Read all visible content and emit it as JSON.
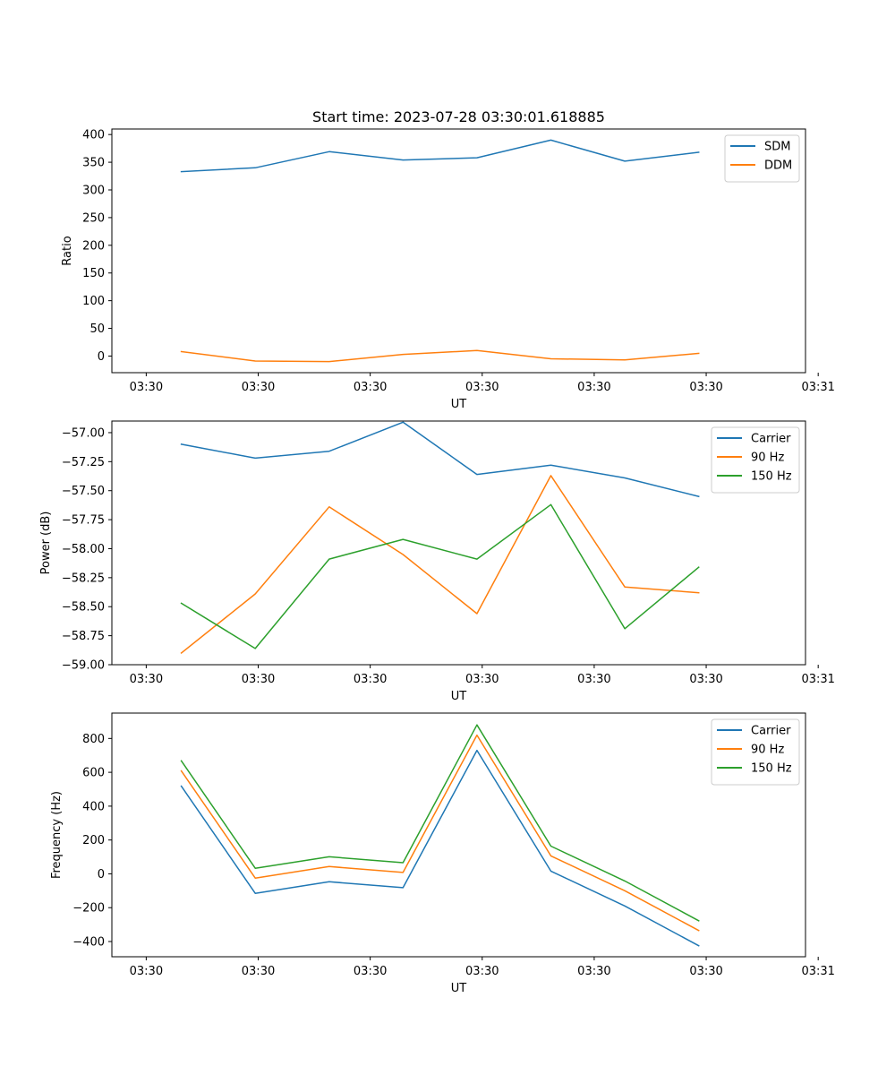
{
  "chart_data": [
    {
      "type": "line",
      "title": "Start time: 2023-07-28 03:30:01.618885",
      "xlabel": "UT",
      "ylabel": "Ratio",
      "xtick_labels": [
        "03:30",
        "03:30",
        "03:30",
        "03:30",
        "03:30",
        "03:30",
        "03:31"
      ],
      "xlim": [
        -0.46,
        8.83
      ],
      "x": [
        0.47,
        1.46,
        2.45,
        3.44,
        4.43,
        5.42,
        6.41,
        7.4
      ],
      "ylim": [
        -30,
        410
      ],
      "yticks": [
        0,
        50,
        100,
        150,
        200,
        250,
        300,
        350,
        400
      ],
      "legend_position": "top-right",
      "series": [
        {
          "name": "SDM",
          "color": "#1f77b4",
          "values": [
            333,
            340,
            369,
            354,
            358,
            390,
            352,
            368
          ]
        },
        {
          "name": "DDM",
          "color": "#ff7f0e",
          "values": [
            8,
            -9,
            -10,
            3,
            10,
            -5,
            -7,
            5
          ]
        }
      ]
    },
    {
      "type": "line",
      "title": "",
      "xlabel": "UT",
      "ylabel": "Power (dB)",
      "xtick_labels": [
        "03:30",
        "03:30",
        "03:30",
        "03:30",
        "03:30",
        "03:30",
        "03:31"
      ],
      "xlim": [
        -0.46,
        8.83
      ],
      "x": [
        0.47,
        1.46,
        2.45,
        3.44,
        4.43,
        5.42,
        6.41,
        7.4
      ],
      "ylim": [
        -59.0,
        -56.9
      ],
      "yticks": [
        -59.0,
        -58.75,
        -58.5,
        -58.25,
        -58.0,
        -57.75,
        -57.5,
        -57.25,
        -57.0
      ],
      "ytick_labels": [
        "−59.00",
        "−58.75",
        "−58.50",
        "−58.25",
        "−58.00",
        "−57.75",
        "−57.50",
        "−57.25",
        "−57.00"
      ],
      "legend_position": "top-right",
      "series": [
        {
          "name": "Carrier",
          "color": "#1f77b4",
          "values": [
            -57.1,
            -57.22,
            -57.16,
            -56.91,
            -57.36,
            -57.28,
            -57.39,
            -57.55
          ]
        },
        {
          "name": "90 Hz",
          "color": "#ff7f0e",
          "values": [
            -58.9,
            -58.39,
            -57.64,
            -58.05,
            -58.56,
            -57.37,
            -58.33,
            -58.38
          ]
        },
        {
          "name": "150 Hz",
          "color": "#2ca02c",
          "values": [
            -58.47,
            -58.86,
            -58.09,
            -57.92,
            -58.09,
            -57.62,
            -58.69,
            -58.16
          ]
        }
      ]
    },
    {
      "type": "line",
      "title": "",
      "xlabel": "UT",
      "ylabel": "Frequency (Hz)",
      "xtick_labels": [
        "03:30",
        "03:30",
        "03:30",
        "03:30",
        "03:30",
        "03:30",
        "03:31"
      ],
      "xlim": [
        -0.46,
        8.83
      ],
      "x": [
        0.47,
        1.46,
        2.45,
        3.44,
        4.43,
        5.42,
        6.41,
        7.4
      ],
      "ylim": [
        -490,
        950
      ],
      "yticks": [
        -400,
        -200,
        0,
        200,
        400,
        600,
        800
      ],
      "ytick_labels": [
        "−400",
        "−200",
        "0",
        "200",
        "400",
        "600",
        "800"
      ],
      "legend_position": "top-right",
      "series": [
        {
          "name": "Carrier",
          "color": "#1f77b4",
          "values": [
            518,
            -115,
            -47,
            -82,
            730,
            16,
            -190,
            -425
          ]
        },
        {
          "name": "90 Hz",
          "color": "#ff7f0e",
          "values": [
            608,
            -25,
            43,
            8,
            820,
            106,
            -100,
            -335
          ]
        },
        {
          "name": "150 Hz",
          "color": "#2ca02c",
          "values": [
            668,
            33,
            101,
            66,
            880,
            164,
            -42,
            -277
          ]
        }
      ]
    }
  ]
}
